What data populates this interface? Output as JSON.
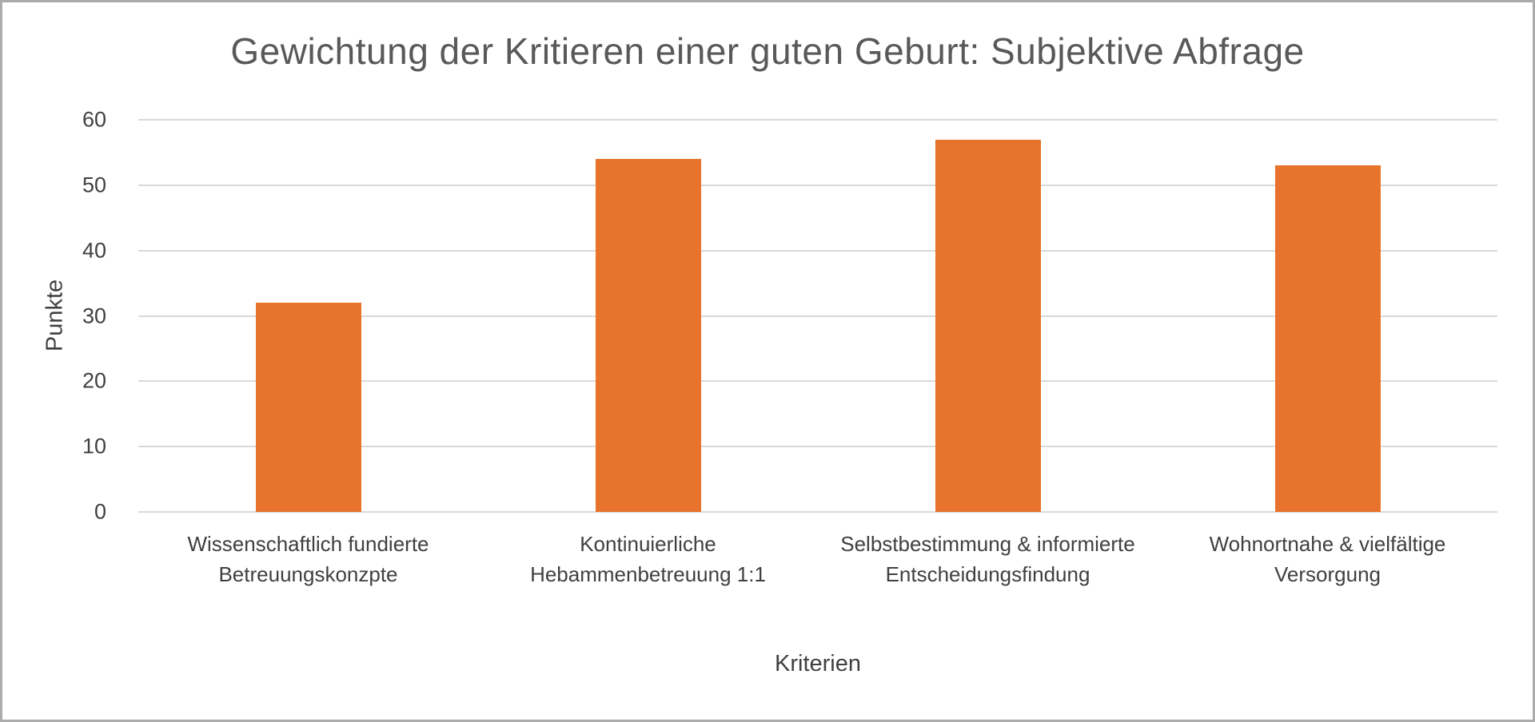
{
  "chart_data": {
    "type": "bar",
    "title": "Gewichtung der Kritieren einer guten Geburt: Subjektive Abfrage",
    "categories": [
      "Wissenschaftlich fundierte Betreuungskonzpte",
      "Kontinuierliche Hebammenbetreuung 1:1",
      "Selbstbestimmung & informierte Entscheidungsfindung",
      "Wohnortnahe & vielfältige Versorgung"
    ],
    "values": [
      32,
      54,
      57,
      53
    ],
    "xlabel": "Kriterien",
    "ylabel": "Punkte",
    "ylim": [
      0,
      60
    ],
    "ytick_step": 10,
    "yticks": [
      0,
      10,
      20,
      30,
      40,
      50,
      60
    ],
    "bar_color": "#e8732c",
    "gridline_color": "#d9d9d9",
    "grid": true,
    "legend": "none"
  }
}
